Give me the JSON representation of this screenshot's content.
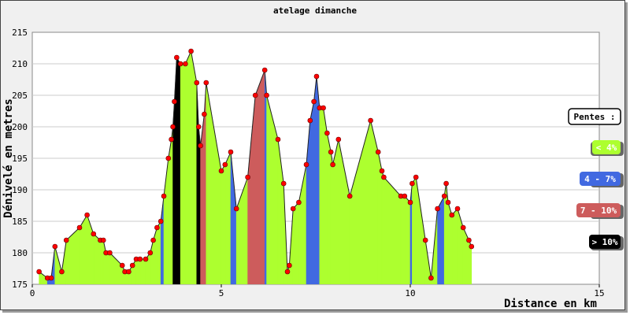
{
  "chart_data": {
    "type": "area",
    "title": "atelage dimanche",
    "xlabel": "Distance en km",
    "ylabel": "Dénivelé en metres",
    "xlim": [
      0,
      15
    ],
    "ylim": [
      175,
      215
    ],
    "xticks": [
      0,
      5,
      10,
      15
    ],
    "yticks": [
      175,
      180,
      185,
      190,
      195,
      200,
      205,
      210,
      215
    ],
    "grid": "horizontal",
    "legend_placement": "right",
    "legend": {
      "title": "Pentes :",
      "entries": [
        {
          "label": "< 4%",
          "color": "#adff2f",
          "text_color": "#ffffff"
        },
        {
          "label": "4 - 7%",
          "color": "#4169e1",
          "text_color": "#ffffff"
        },
        {
          "label": "7 - 10%",
          "color": "#cd5c5c",
          "text_color": "#ffffff"
        },
        {
          "label": "> 10%",
          "color": "#000000",
          "text_color": "#ffffff"
        }
      ]
    },
    "colors": {
      "lt4": "#adff2f",
      "4to7": "#4169e1",
      "7to10": "#cd5c5c",
      "gt10": "#000000",
      "marker": "#ff0000",
      "line": "#222222"
    },
    "profile": [
      {
        "x": 0.18,
        "y": 177,
        "slope": "lt4"
      },
      {
        "x": 0.4,
        "y": 176,
        "slope": "lt4"
      },
      {
        "x": 0.5,
        "y": 176,
        "slope": "4to7"
      },
      {
        "x": 0.6,
        "y": 181,
        "slope": "4to7"
      },
      {
        "x": 0.78,
        "y": 177,
        "slope": "lt4"
      },
      {
        "x": 0.9,
        "y": 182,
        "slope": "lt4"
      },
      {
        "x": 1.25,
        "y": 184,
        "slope": "lt4"
      },
      {
        "x": 1.45,
        "y": 186,
        "slope": "lt4"
      },
      {
        "x": 1.62,
        "y": 183,
        "slope": "lt4"
      },
      {
        "x": 1.8,
        "y": 182,
        "slope": "lt4"
      },
      {
        "x": 1.88,
        "y": 182,
        "slope": "lt4"
      },
      {
        "x": 1.95,
        "y": 180,
        "slope": "lt4"
      },
      {
        "x": 2.05,
        "y": 180,
        "slope": "lt4"
      },
      {
        "x": 2.38,
        "y": 178,
        "slope": "lt4"
      },
      {
        "x": 2.45,
        "y": 177,
        "slope": "lt4"
      },
      {
        "x": 2.55,
        "y": 177,
        "slope": "lt4"
      },
      {
        "x": 2.65,
        "y": 178,
        "slope": "lt4"
      },
      {
        "x": 2.75,
        "y": 179,
        "slope": "lt4"
      },
      {
        "x": 2.85,
        "y": 179,
        "slope": "lt4"
      },
      {
        "x": 3.0,
        "y": 179,
        "slope": "lt4"
      },
      {
        "x": 3.12,
        "y": 180,
        "slope": "lt4"
      },
      {
        "x": 3.2,
        "y": 182,
        "slope": "lt4"
      },
      {
        "x": 3.3,
        "y": 184,
        "slope": "lt4"
      },
      {
        "x": 3.4,
        "y": 185,
        "slope": "lt4"
      },
      {
        "x": 3.48,
        "y": 189,
        "slope": "4to7"
      },
      {
        "x": 3.6,
        "y": 195,
        "slope": "lt4"
      },
      {
        "x": 3.68,
        "y": 198,
        "slope": "lt4"
      },
      {
        "x": 3.72,
        "y": 200,
        "slope": "lt4"
      },
      {
        "x": 3.76,
        "y": 204,
        "slope": "gt10"
      },
      {
        "x": 3.82,
        "y": 211,
        "slope": "gt10"
      },
      {
        "x": 3.92,
        "y": 210,
        "slope": "gt10"
      },
      {
        "x": 4.05,
        "y": 210,
        "slope": "lt4"
      },
      {
        "x": 4.2,
        "y": 212,
        "slope": "lt4"
      },
      {
        "x": 4.35,
        "y": 207,
        "slope": "lt4"
      },
      {
        "x": 4.4,
        "y": 200,
        "slope": "gt10"
      },
      {
        "x": 4.45,
        "y": 197,
        "slope": "gt10"
      },
      {
        "x": 4.55,
        "y": 202,
        "slope": "7to10"
      },
      {
        "x": 4.6,
        "y": 207,
        "slope": "7to10"
      },
      {
        "x": 5.0,
        "y": 193,
        "slope": "lt4"
      },
      {
        "x": 5.1,
        "y": 194,
        "slope": "lt4"
      },
      {
        "x": 5.25,
        "y": 196,
        "slope": "lt4"
      },
      {
        "x": 5.4,
        "y": 187,
        "slope": "4to7"
      },
      {
        "x": 5.7,
        "y": 192,
        "slope": "lt4"
      },
      {
        "x": 5.9,
        "y": 205,
        "slope": "7to10"
      },
      {
        "x": 6.15,
        "y": 209,
        "slope": "7to10"
      },
      {
        "x": 6.2,
        "y": 205,
        "slope": "4to7"
      },
      {
        "x": 6.5,
        "y": 198,
        "slope": "lt4"
      },
      {
        "x": 6.65,
        "y": 191,
        "slope": "lt4"
      },
      {
        "x": 6.75,
        "y": 177,
        "slope": "lt4"
      },
      {
        "x": 6.8,
        "y": 178,
        "slope": "lt4"
      },
      {
        "x": 6.9,
        "y": 187,
        "slope": "lt4"
      },
      {
        "x": 7.05,
        "y": 188,
        "slope": "lt4"
      },
      {
        "x": 7.25,
        "y": 194,
        "slope": "lt4"
      },
      {
        "x": 7.35,
        "y": 201,
        "slope": "4to7"
      },
      {
        "x": 7.45,
        "y": 204,
        "slope": "4to7"
      },
      {
        "x": 7.52,
        "y": 208,
        "slope": "4to7"
      },
      {
        "x": 7.6,
        "y": 203,
        "slope": "4to7"
      },
      {
        "x": 7.7,
        "y": 203,
        "slope": "lt4"
      },
      {
        "x": 7.8,
        "y": 199,
        "slope": "lt4"
      },
      {
        "x": 7.9,
        "y": 196,
        "slope": "lt4"
      },
      {
        "x": 7.95,
        "y": 194,
        "slope": "lt4"
      },
      {
        "x": 8.1,
        "y": 198,
        "slope": "lt4"
      },
      {
        "x": 8.4,
        "y": 189,
        "slope": "lt4"
      },
      {
        "x": 8.95,
        "y": 201,
        "slope": "lt4"
      },
      {
        "x": 9.15,
        "y": 196,
        "slope": "lt4"
      },
      {
        "x": 9.25,
        "y": 193,
        "slope": "lt4"
      },
      {
        "x": 9.3,
        "y": 192,
        "slope": "lt4"
      },
      {
        "x": 9.75,
        "y": 189,
        "slope": "lt4"
      },
      {
        "x": 9.85,
        "y": 189,
        "slope": "lt4"
      },
      {
        "x": 10.0,
        "y": 188,
        "slope": "lt4"
      },
      {
        "x": 10.05,
        "y": 191,
        "slope": "4to7"
      },
      {
        "x": 10.15,
        "y": 192,
        "slope": "lt4"
      },
      {
        "x": 10.4,
        "y": 182,
        "slope": "lt4"
      },
      {
        "x": 10.55,
        "y": 176,
        "slope": "lt4"
      },
      {
        "x": 10.72,
        "y": 187,
        "slope": "lt4"
      },
      {
        "x": 10.9,
        "y": 189,
        "slope": "4to7"
      },
      {
        "x": 10.95,
        "y": 191,
        "slope": "lt4"
      },
      {
        "x": 11.0,
        "y": 188,
        "slope": "lt4"
      },
      {
        "x": 11.1,
        "y": 186,
        "slope": "lt4"
      },
      {
        "x": 11.25,
        "y": 187,
        "slope": "lt4"
      },
      {
        "x": 11.4,
        "y": 184,
        "slope": "lt4"
      },
      {
        "x": 11.55,
        "y": 182,
        "slope": "lt4"
      },
      {
        "x": 11.62,
        "y": 181,
        "slope": "lt4"
      }
    ]
  }
}
